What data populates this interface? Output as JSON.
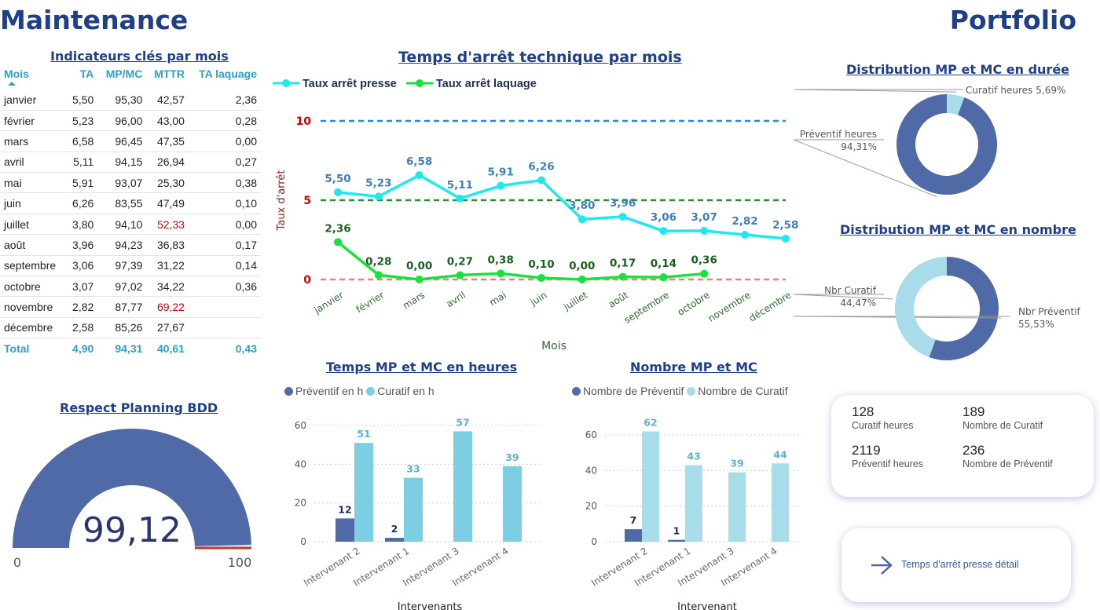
{
  "header": {
    "title_left": "Maintenance",
    "title_right": "Portfolio"
  },
  "kpi_table": {
    "title": "Indicateurs clés par mois",
    "columns": [
      "Mois",
      "TA",
      "MP/MC",
      "MTTR",
      "TA laquage"
    ],
    "rows": [
      {
        "mois": "janvier",
        "ta": "5,50",
        "mpmc": "95,30",
        "mttr": "42,57",
        "tal": "2,36",
        "mttr_alert": false
      },
      {
        "mois": "février",
        "ta": "5,23",
        "mpmc": "96,00",
        "mttr": "43,00",
        "tal": "0,28",
        "mttr_alert": false
      },
      {
        "mois": "mars",
        "ta": "6,58",
        "mpmc": "96,45",
        "mttr": "47,35",
        "tal": "0,00",
        "mttr_alert": false
      },
      {
        "mois": "avril",
        "ta": "5,11",
        "mpmc": "94,15",
        "mttr": "26,94",
        "tal": "0,27",
        "mttr_alert": false
      },
      {
        "mois": "mai",
        "ta": "5,91",
        "mpmc": "93,07",
        "mttr": "25,30",
        "tal": "0,38",
        "mttr_alert": false
      },
      {
        "mois": "juin",
        "ta": "6,26",
        "mpmc": "83,55",
        "mttr": "47,49",
        "tal": "0,10",
        "mttr_alert": false
      },
      {
        "mois": "juillet",
        "ta": "3,80",
        "mpmc": "94,10",
        "mttr": "52,33",
        "tal": "0,00",
        "mttr_alert": true
      },
      {
        "mois": "août",
        "ta": "3,96",
        "mpmc": "94,23",
        "mttr": "36,83",
        "tal": "0,17",
        "mttr_alert": false
      },
      {
        "mois": "septembre",
        "ta": "3,06",
        "mpmc": "97,39",
        "mttr": "31,22",
        "tal": "0,14",
        "mttr_alert": false
      },
      {
        "mois": "octobre",
        "ta": "3,07",
        "mpmc": "97,02",
        "mttr": "34,22",
        "tal": "0,36",
        "mttr_alert": false
      },
      {
        "mois": "novembre",
        "ta": "2,82",
        "mpmc": "87,77",
        "mttr": "69,22",
        "tal": "",
        "mttr_alert": true
      },
      {
        "mois": "décembre",
        "ta": "2,58",
        "mpmc": "85,26",
        "mttr": "27,67",
        "tal": "",
        "mttr_alert": false
      }
    ],
    "total": {
      "mois": "Total",
      "ta": "4,90",
      "mpmc": "94,31",
      "mttr": "40,61",
      "tal": "0,43"
    },
    "alert_color": "#d40000",
    "header_color": "#2e9fc9"
  },
  "gauge": {
    "title": "Respect Planning BDD",
    "value": 99.12,
    "value_label": "99,12",
    "min_label": "0",
    "max_label": "100",
    "min": 0,
    "max": 100,
    "color": "#4f6aa6",
    "target_color": "#c0392b"
  },
  "buttons": {
    "detail_label": "Temps d'arrêt presse détail"
  },
  "kpi_cards": [
    {
      "value": "128",
      "label": "Curatif heures"
    },
    {
      "value": "189",
      "label": "Nombre de Curatif"
    },
    {
      "value": "2119",
      "label": "Préventif heures"
    },
    {
      "value": "236",
      "label": "Nombre de Préventif"
    }
  ],
  "chart_data": [
    {
      "id": "line",
      "type": "line",
      "title": "Temps d'arrêt technique par mois",
      "xlabel": "Mois",
      "ylabel": "Taux d'arrêt",
      "categories": [
        "janvier",
        "février",
        "mars",
        "avril",
        "mai",
        "juin",
        "juillet",
        "août",
        "septembre",
        "octobre",
        "novembre",
        "décembre"
      ],
      "ylim": [
        0,
        10
      ],
      "reference_lines": [
        {
          "value": 10,
          "label": "10",
          "color": "#2e86de"
        },
        {
          "value": 5,
          "label": "5",
          "color": "#2e8b3e"
        },
        {
          "value": 0,
          "label": "0",
          "color": "#e88080"
        }
      ],
      "series": [
        {
          "name": "Taux arrêt presse",
          "color": "#1de9f0",
          "values": [
            5.5,
            5.23,
            6.58,
            5.11,
            5.91,
            6.26,
            3.8,
            3.96,
            3.06,
            3.07,
            2.82,
            2.58
          ],
          "labels": [
            "5,50",
            "5,23",
            "6,58",
            "5,11",
            "5,91",
            "6,26",
            "3,80",
            "3,96",
            "3,06",
            "3,07",
            "2,82",
            "2,58"
          ],
          "label_color": "#3b7fbf"
        },
        {
          "name": "Taux arrêt laquage",
          "color": "#19e33a",
          "values": [
            2.36,
            0.28,
            0.0,
            0.27,
            0.38,
            0.1,
            0.0,
            0.17,
            0.14,
            0.36,
            null,
            null
          ],
          "labels": [
            "2,36",
            "0,28",
            "0,00",
            "0,27",
            "0,38",
            "0,10",
            "0,00",
            "0,17",
            "0,14",
            "0,36",
            "",
            ""
          ],
          "label_color": "#1b5e20"
        }
      ],
      "legend_position": "top-left",
      "grid": false
    },
    {
      "id": "donut_duree",
      "type": "pie",
      "title": "Distribution MP et MC en durée",
      "slices": [
        {
          "name": "Curatif heures",
          "value": 5.69,
          "label": "5,69%",
          "color": "#a8dcea"
        },
        {
          "name": "Préventif heures",
          "value": 94.31,
          "label": "94,31%",
          "color": "#4f6aa6"
        }
      ]
    },
    {
      "id": "donut_nombre",
      "type": "pie",
      "title": "Distribution MP et MC en nombre",
      "slices": [
        {
          "name": "Nbr Préventif",
          "value": 55.53,
          "label": "55,53%",
          "color": "#4f6aa6"
        },
        {
          "name": "Nbr Curatif",
          "value": 44.47,
          "label": "44,47%",
          "color": "#a8dcea"
        }
      ]
    },
    {
      "id": "bar_heures",
      "type": "bar",
      "title": "Temps MP et MC en heures",
      "xlabel": "Intervenants",
      "categories": [
        "Intervenant 2",
        "Intervenant 1",
        "Intervenant 3",
        "Intervenant 4"
      ],
      "ylim": [
        0,
        60
      ],
      "yticks": [
        0,
        20,
        40,
        60
      ],
      "series": [
        {
          "name": "Préventif en h",
          "color": "#4f6aa6",
          "values": [
            12,
            2,
            null,
            null
          ]
        },
        {
          "name": "Curatif en h",
          "color": "#7ccfe3",
          "values": [
            51,
            33,
            57,
            39
          ]
        }
      ],
      "legend_position": "top-left",
      "grid": true
    },
    {
      "id": "bar_nombre",
      "type": "bar",
      "title": "Nombre MP et MC",
      "xlabel": "Intervenant",
      "categories": [
        "Intervenant 2",
        "Intervenant 1",
        "Intervenant 3",
        "Intervenant 4"
      ],
      "ylim": [
        0,
        60
      ],
      "yticks": [
        0,
        20,
        40,
        60
      ],
      "series": [
        {
          "name": "Nombre de Préventif",
          "color": "#4f6aa6",
          "values": [
            7,
            1,
            null,
            null
          ]
        },
        {
          "name": "Nombre de Curatif",
          "color": "#a8dcea",
          "values": [
            62,
            43,
            39,
            44
          ]
        }
      ],
      "legend_position": "top-left",
      "grid": true
    }
  ]
}
